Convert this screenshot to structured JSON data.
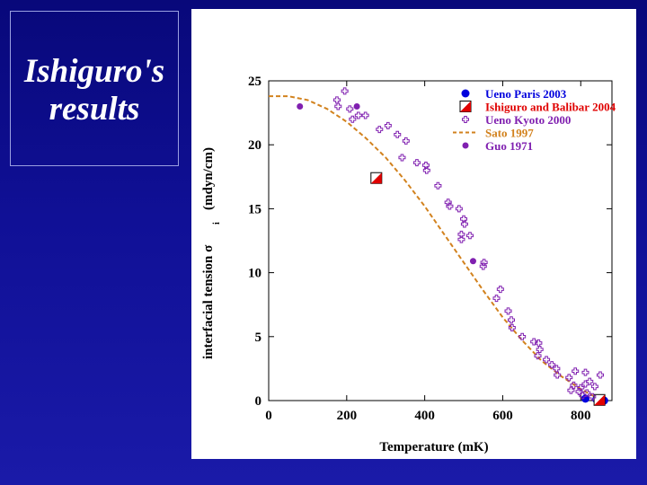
{
  "slide": {
    "title_line1": "Ishiguro's",
    "title_line2": "results"
  },
  "chart_data": {
    "type": "scatter",
    "title": "",
    "xlabel": "Temperature  (mK)",
    "ylabel": "interfacial tension  σ",
    "ylabel_subscript": "i",
    "ylabel_unit": "(mdyn/cm)",
    "xlim": [
      0,
      880
    ],
    "ylim": [
      0,
      25
    ],
    "xticks": [
      0,
      200,
      400,
      600,
      800
    ],
    "yticks": [
      0,
      5,
      10,
      15,
      20,
      25
    ],
    "series": [
      {
        "name": "Ueno  Paris 2003",
        "marker": "circle",
        "color": "#0000dd",
        "points": [
          [
            840,
            0.1
          ],
          [
            860,
            0.0
          ],
          [
            812,
            0.15
          ]
        ]
      },
      {
        "name": "Ishiguro and Balibar 2004",
        "marker": "half-square",
        "color": "#e00000",
        "points": [
          [
            276,
            17.4
          ],
          [
            848,
            0.05
          ]
        ]
      },
      {
        "name": "Ueno Kyoto 2000",
        "marker": "cross",
        "color": "#8020b0",
        "points": [
          [
            175,
            23.5
          ],
          [
            195,
            24.2
          ],
          [
            178,
            23.0
          ],
          [
            208,
            22.8
          ],
          [
            230,
            22.3
          ],
          [
            248,
            22.3
          ],
          [
            215,
            22.0
          ],
          [
            284,
            21.2
          ],
          [
            306,
            21.5
          ],
          [
            330,
            20.8
          ],
          [
            352,
            20.3
          ],
          [
            342,
            19.0
          ],
          [
            380,
            18.6
          ],
          [
            403,
            18.4
          ],
          [
            405,
            18.0
          ],
          [
            434,
            16.8
          ],
          [
            460,
            15.5
          ],
          [
            464,
            15.2
          ],
          [
            488,
            15.0
          ],
          [
            500,
            14.2
          ],
          [
            502,
            13.8
          ],
          [
            494,
            13.0
          ],
          [
            494,
            12.6
          ],
          [
            516,
            12.9
          ],
          [
            552,
            10.8
          ],
          [
            550,
            10.5
          ],
          [
            594,
            8.7
          ],
          [
            584,
            8.0
          ],
          [
            614,
            7.0
          ],
          [
            622,
            6.3
          ],
          [
            624,
            5.7
          ],
          [
            650,
            5.0
          ],
          [
            680,
            4.6
          ],
          [
            692,
            4.5
          ],
          [
            695,
            4.0
          ],
          [
            690,
            3.5
          ],
          [
            712,
            3.2
          ],
          [
            726,
            2.8
          ],
          [
            738,
            2.5
          ],
          [
            740,
            2.0
          ],
          [
            770,
            1.8
          ],
          [
            786,
            2.3
          ],
          [
            782,
            1.2
          ],
          [
            800,
            1.0
          ],
          [
            812,
            1.3
          ],
          [
            823,
            1.5
          ],
          [
            836,
            1.1
          ],
          [
            850,
            2.0
          ],
          [
            796,
            0.7
          ],
          [
            805,
            0.4
          ],
          [
            816,
            0.6
          ],
          [
            830,
            0.3
          ],
          [
            775,
            0.8
          ],
          [
            812,
            2.2
          ]
        ]
      },
      {
        "name": "Sato 1997",
        "marker": "dashed-line",
        "color": "#d2821e",
        "points": [
          [
            0,
            23.8
          ],
          [
            50,
            23.8
          ],
          [
            100,
            23.5
          ],
          [
            150,
            22.8
          ],
          [
            200,
            21.8
          ],
          [
            250,
            20.5
          ],
          [
            300,
            19.0
          ],
          [
            350,
            17.2
          ],
          [
            400,
            15.2
          ],
          [
            450,
            13.0
          ],
          [
            500,
            10.8
          ],
          [
            550,
            8.6
          ],
          [
            600,
            6.5
          ],
          [
            650,
            4.7
          ],
          [
            700,
            3.1
          ],
          [
            750,
            1.9
          ],
          [
            800,
            0.9
          ],
          [
            830,
            0.4
          ],
          [
            850,
            0.1
          ],
          [
            870,
            0.0
          ]
        ]
      },
      {
        "name": "Guo 1971",
        "marker": "dot",
        "color": "#8020b0",
        "points": [
          [
            80,
            23.0
          ],
          [
            226,
            23.0
          ],
          [
            524,
            10.9
          ]
        ]
      }
    ],
    "legend_position": "top-right"
  }
}
